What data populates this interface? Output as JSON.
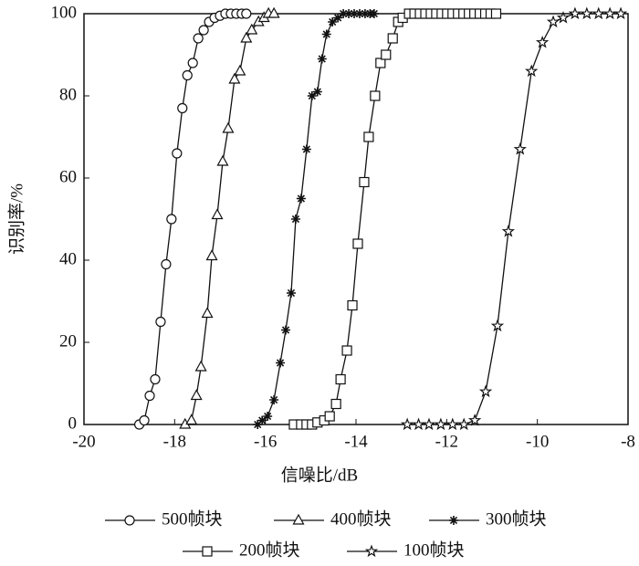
{
  "chart_data": {
    "type": "line",
    "x_label": "信噪比/dB",
    "y_label": "识别率/%",
    "xlim": [
      -20,
      -8
    ],
    "xticks": [
      -20,
      -18,
      -16,
      -14,
      -12,
      -10,
      -8
    ],
    "ylim": [
      0,
      100
    ],
    "yticks": [
      0,
      20,
      40,
      60,
      80,
      100
    ],
    "series": [
      {
        "name": "500帧块",
        "color": "#111111",
        "marker": "circle",
        "x": [
          -18.78,
          -18.67,
          -18.55,
          -18.43,
          -18.31,
          -18.19,
          -18.07,
          -17.95,
          -17.83,
          -17.72,
          -17.6,
          -17.48,
          -17.36,
          -17.24,
          -17.12,
          -17.0,
          -16.88,
          -16.76,
          -16.64,
          -16.52,
          -16.42
        ],
        "values": [
          0,
          1,
          7,
          11,
          25,
          39,
          50,
          66,
          77,
          85,
          88,
          94,
          96,
          98,
          99,
          99.5,
          100,
          100,
          100,
          100,
          100
        ]
      },
      {
        "name": "400帧块",
        "color": "#111111",
        "marker": "triangle",
        "x": [
          -17.77,
          -17.63,
          -17.52,
          -17.42,
          -17.28,
          -17.18,
          -17.06,
          -16.94,
          -16.82,
          -16.68,
          -16.56,
          -16.42,
          -16.3,
          -16.15,
          -16.03,
          -15.93,
          -15.81
        ],
        "values": [
          0,
          1,
          7,
          14,
          27,
          41,
          51,
          64,
          72,
          84,
          86,
          94,
          96,
          98,
          99,
          100,
          100
        ]
      },
      {
        "name": "300帧块",
        "color": "#111111",
        "marker": "asterisk",
        "x": [
          -16.17,
          -16.07,
          -15.95,
          -15.81,
          -15.67,
          -15.55,
          -15.43,
          -15.33,
          -15.21,
          -15.09,
          -14.97,
          -14.85,
          -14.75,
          -14.65,
          -14.52,
          -14.4,
          -14.28,
          -14.16,
          -14.04,
          -13.92,
          -13.8,
          -13.69,
          -13.6
        ],
        "values": [
          0,
          1,
          2,
          6,
          15,
          23,
          32,
          50,
          55,
          67,
          80,
          81,
          89,
          95,
          98,
          99,
          100,
          100,
          100,
          100,
          100,
          100,
          100
        ]
      },
      {
        "name": "200帧块",
        "color": "#111111",
        "marker": "square",
        "x": [
          -15.37,
          -15.21,
          -15.09,
          -14.97,
          -14.85,
          -14.7,
          -14.58,
          -14.44,
          -14.34,
          -14.2,
          -14.08,
          -13.96,
          -13.82,
          -13.72,
          -13.58,
          -13.46,
          -13.34,
          -13.19,
          -13.07,
          -12.97,
          -12.83,
          -12.71,
          -12.59,
          -12.47,
          -12.35,
          -12.23,
          -12.11,
          -11.99,
          -11.87,
          -11.75,
          -11.63,
          -11.51,
          -11.39,
          -11.27,
          -11.15,
          -11.03,
          -10.91
        ],
        "values": [
          0,
          0,
          0,
          0,
          0.5,
          1,
          2,
          5,
          11,
          18,
          29,
          44,
          59,
          70,
          80,
          88,
          90,
          94,
          98,
          99,
          100,
          100,
          100,
          100,
          100,
          100,
          100,
          100,
          100,
          100,
          100,
          100,
          100,
          100,
          100,
          100,
          100
        ]
      },
      {
        "name": "100帧块",
        "color": "#111111",
        "marker": "star",
        "x": [
          -12.87,
          -12.62,
          -12.39,
          -12.13,
          -11.87,
          -11.62,
          -11.38,
          -11.14,
          -10.88,
          -10.64,
          -10.38,
          -10.13,
          -9.89,
          -9.65,
          -9.43,
          -9.17,
          -8.91,
          -8.65,
          -8.4,
          -8.16
        ],
        "values": [
          0,
          0,
          0,
          0,
          0,
          0,
          1,
          8,
          24,
          47,
          67,
          86,
          93,
          98,
          99,
          100,
          100,
          100,
          100,
          100
        ]
      }
    ]
  }
}
